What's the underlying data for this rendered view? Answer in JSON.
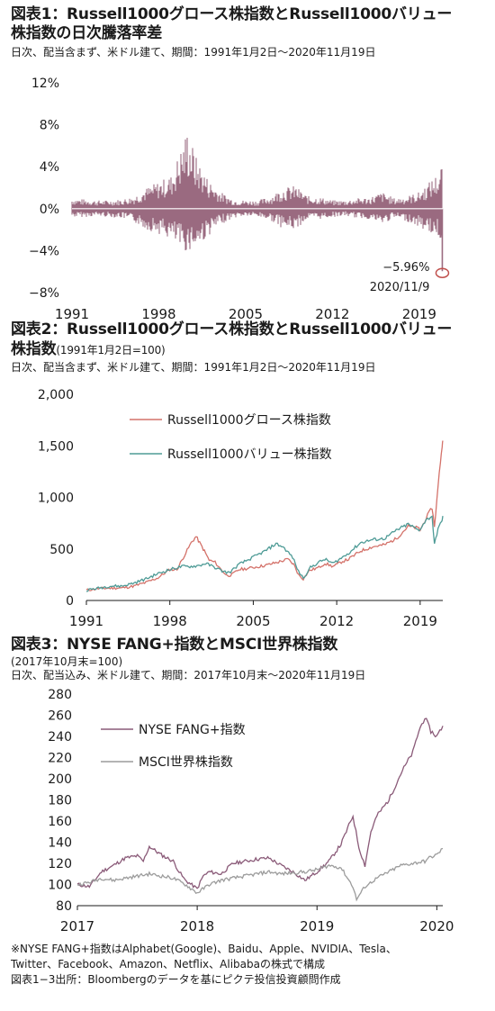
{
  "chart1": {
    "title_line1": "図表1：Russell1000グロース株指数とRussell1000バリュー",
    "title_line2": "株指数の日次騰落率差",
    "subtitle": "日次、配当含まず、米ドル建て、期間：1991年1月2日～2020年11月19日",
    "annotation_value": "−5.96%",
    "annotation_date": "2020/11/9",
    "colors": {
      "bar": "#9b6b80",
      "marker": "#c0504d"
    }
  },
  "chart2": {
    "title_line1": "図表2：Russell1000グロース株指数とRussell1000バリュー",
    "title_line2": "株指数",
    "title_suffix": "(1991年1月2日=100)",
    "subtitle": "日次、配当含まず、米ドル建て、期間：1991年1月2日～2020年11月19日",
    "colors": {
      "growth": "#d4726a",
      "value": "#4e9b96"
    }
  },
  "chart3": {
    "title_line1": "図表3：NYSE FANG+指数とMSCI世界株指数",
    "title_line2": "(2017年10月末=100)",
    "subtitle": "日次、配当込み、米ドル建て、期間：2017年10月末～2020年11月19日",
    "colors": {
      "fang": "#8a5a78",
      "msci": "#9c9c9c"
    }
  },
  "footnote1": "※NYSE FANG+指数はAlphabet(Google)、Baidu、Apple、NVIDIA、Tesla、",
  "footnote2": "Twitter、Facebook、Amazon、Netflix、Alibabaの株式で構成",
  "footnote3": "図表1−3出所：Bloombergのデータを基にピクテ投信投資顧問作成",
  "chart_data": [
    {
      "type": "bar",
      "title": "図表1：Russell1000グロース株指数とRussell1000バリュー株指数の日次騰落率差",
      "xlim": [
        1991,
        2020.9
      ],
      "ylim": [
        -8,
        12
      ],
      "y_ticks": [
        "12%",
        "8%",
        "4%",
        "0%",
        "−4%",
        "−8%"
      ],
      "y_tick_values": [
        12,
        8,
        4,
        0,
        -4,
        -8
      ],
      "x_ticks": [
        "1991",
        "1998",
        "2005",
        "2012",
        "2019"
      ],
      "x_tick_values": [
        1991,
        1998,
        2005,
        2012,
        2019
      ],
      "envelope": [
        {
          "year": 1991.0,
          "up": 1.0,
          "down": -0.8
        },
        {
          "year": 1992.0,
          "up": 0.9,
          "down": -0.8
        },
        {
          "year": 1993.0,
          "up": 0.8,
          "down": -0.7
        },
        {
          "year": 1994.0,
          "up": 0.8,
          "down": -0.8
        },
        {
          "year": 1995.0,
          "up": 0.9,
          "down": -0.9
        },
        {
          "year": 1996.0,
          "up": 1.2,
          "down": -1.3
        },
        {
          "year": 1997.0,
          "up": 2.0,
          "down": -2.0
        },
        {
          "year": 1998.0,
          "up": 2.6,
          "down": -2.4
        },
        {
          "year": 1999.0,
          "up": 3.2,
          "down": -3.0
        },
        {
          "year": 2000.0,
          "up": 6.5,
          "down": -4.2
        },
        {
          "year": 2000.3,
          "up": 7.8,
          "down": -4.0
        },
        {
          "year": 2001.0,
          "up": 5.0,
          "down": -3.8
        },
        {
          "year": 2002.0,
          "up": 2.8,
          "down": -2.6
        },
        {
          "year": 2003.0,
          "up": 1.6,
          "down": -1.5
        },
        {
          "year": 2004.0,
          "up": 0.9,
          "down": -0.9
        },
        {
          "year": 2005.0,
          "up": 0.8,
          "down": -0.7
        },
        {
          "year": 2006.0,
          "up": 0.8,
          "down": -0.8
        },
        {
          "year": 2007.0,
          "up": 1.2,
          "down": -1.1
        },
        {
          "year": 2008.0,
          "up": 2.0,
          "down": -1.9
        },
        {
          "year": 2009.0,
          "up": 2.2,
          "down": -2.0
        },
        {
          "year": 2010.0,
          "up": 1.2,
          "down": -1.0
        },
        {
          "year": 2011.0,
          "up": 1.1,
          "down": -1.0
        },
        {
          "year": 2012.0,
          "up": 0.8,
          "down": -0.8
        },
        {
          "year": 2013.0,
          "up": 0.8,
          "down": -0.7
        },
        {
          "year": 2014.0,
          "up": 1.0,
          "down": -0.9
        },
        {
          "year": 2015.0,
          "up": 1.1,
          "down": -1.0
        },
        {
          "year": 2016.0,
          "up": 1.6,
          "down": -1.5
        },
        {
          "year": 2017.0,
          "up": 1.0,
          "down": -0.9
        },
        {
          "year": 2018.0,
          "up": 1.2,
          "down": -1.2
        },
        {
          "year": 2019.0,
          "up": 1.6,
          "down": -1.8
        },
        {
          "year": 2020.0,
          "up": 2.8,
          "down": -2.4
        },
        {
          "year": 2020.6,
          "up": 3.5,
          "down": -2.8
        },
        {
          "year": 2020.8,
          "up": 4.3,
          "down": -3.0
        }
      ],
      "highlight": {
        "date": "2020/11/9",
        "value": -5.96
      }
    },
    {
      "type": "line",
      "title": "図表2：Russell1000グロース株指数とRussell1000バリュー株指数",
      "xlim": [
        1991,
        2020.9
      ],
      "ylim": [
        0,
        2000
      ],
      "y_ticks": [
        "2,000",
        "1,500",
        "1,000",
        "500",
        "0"
      ],
      "y_tick_values": [
        2000,
        1500,
        1000,
        500,
        0
      ],
      "x_ticks": [
        "1991",
        "1998",
        "2005",
        "2012",
        "2019"
      ],
      "x_tick_values": [
        1991,
        1998,
        2005,
        2012,
        2019
      ],
      "legend_position": "top-center",
      "series": [
        {
          "name": "Russell1000グロース株指数",
          "points": [
            [
              1991.0,
              100
            ],
            [
              1992,
              115
            ],
            [
              1993,
              120
            ],
            [
              1994,
              122
            ],
            [
              1995,
              140
            ],
            [
              1996,
              175
            ],
            [
              1997,
              220
            ],
            [
              1998,
              300
            ],
            [
              1998.6,
              300
            ],
            [
              1999.0,
              390
            ],
            [
              1999.8,
              560
            ],
            [
              2000.2,
              620
            ],
            [
              2000.5,
              560
            ],
            [
              2000.9,
              480
            ],
            [
              2001.3,
              390
            ],
            [
              2001.8,
              370
            ],
            [
              2002.3,
              300
            ],
            [
              2002.8,
              240
            ],
            [
              2003.2,
              250
            ],
            [
              2003.8,
              300
            ],
            [
              2004.5,
              310
            ],
            [
              2005.0,
              320
            ],
            [
              2006.0,
              340
            ],
            [
              2007.0,
              370
            ],
            [
              2007.9,
              400
            ],
            [
              2008.4,
              350
            ],
            [
              2008.8,
              250
            ],
            [
              2009.2,
              210
            ],
            [
              2009.7,
              290
            ],
            [
              2010.5,
              320
            ],
            [
              2011.0,
              360
            ],
            [
              2011.7,
              330
            ],
            [
              2012.5,
              380
            ],
            [
              2013.0,
              400
            ],
            [
              2014.0,
              480
            ],
            [
              2015.0,
              520
            ],
            [
              2016.0,
              540
            ],
            [
              2017.0,
              600
            ],
            [
              2018.0,
              720
            ],
            [
              2018.9,
              700
            ],
            [
              2019.0,
              680
            ],
            [
              2019.5,
              800
            ],
            [
              2020.0,
              900
            ],
            [
              2020.2,
              720
            ],
            [
              2020.5,
              1100
            ],
            [
              2020.7,
              1350
            ],
            [
              2020.85,
              1500
            ],
            [
              2020.9,
              1550
            ]
          ]
        },
        {
          "name": "Russell1000バリュー株指数",
          "points": [
            [
              1991.0,
              100
            ],
            [
              1992,
              120
            ],
            [
              1993,
              140
            ],
            [
              1994,
              140
            ],
            [
              1995,
              170
            ],
            [
              1996,
              210
            ],
            [
              1997,
              260
            ],
            [
              1998,
              300
            ],
            [
              1999.0,
              330
            ],
            [
              1999.8,
              330
            ],
            [
              2000.5,
              340
            ],
            [
              2001.0,
              360
            ],
            [
              2001.8,
              320
            ],
            [
              2002.5,
              280
            ],
            [
              2003.0,
              270
            ],
            [
              2003.8,
              350
            ],
            [
              2004.5,
              390
            ],
            [
              2005.0,
              420
            ],
            [
              2006.0,
              480
            ],
            [
              2006.9,
              550
            ],
            [
              2007.5,
              520
            ],
            [
              2008.3,
              420
            ],
            [
              2008.8,
              280
            ],
            [
              2009.2,
              220
            ],
            [
              2009.8,
              320
            ],
            [
              2010.5,
              370
            ],
            [
              2011.0,
              400
            ],
            [
              2011.7,
              360
            ],
            [
              2012.5,
              420
            ],
            [
              2013.0,
              460
            ],
            [
              2014.0,
              560
            ],
            [
              2015.0,
              590
            ],
            [
              2016.0,
              600
            ],
            [
              2017.0,
              680
            ],
            [
              2018.0,
              740
            ],
            [
              2018.9,
              680
            ],
            [
              2019.5,
              780
            ],
            [
              2020.0,
              820
            ],
            [
              2020.2,
              540
            ],
            [
              2020.5,
              700
            ],
            [
              2020.8,
              760
            ],
            [
              2020.9,
              820
            ]
          ]
        }
      ]
    },
    {
      "type": "line",
      "title": "図表3：NYSE FANG+指数とMSCI世界株指数",
      "xlim": [
        2017.0,
        2020.05
      ],
      "ylim": [
        80,
        280
      ],
      "y_ticks": [
        "280",
        "260",
        "240",
        "220",
        "200",
        "180",
        "160",
        "140",
        "120",
        "100",
        "80"
      ],
      "y_tick_values": [
        280,
        260,
        240,
        220,
        200,
        180,
        160,
        140,
        120,
        100,
        80
      ],
      "x_ticks": [
        "2017",
        "2018",
        "2019",
        "2020"
      ],
      "x_tick_values": [
        2017,
        2018,
        2019,
        2020
      ],
      "legend_position": "top-left",
      "series": [
        {
          "name": "NYSE FANG+指数",
          "points": [
            [
              2017.0,
              100
            ],
            [
              2017.1,
              98
            ],
            [
              2017.2,
              112
            ],
            [
              2017.3,
              118
            ],
            [
              2017.4,
              125
            ],
            [
              2017.5,
              127
            ],
            [
              2017.55,
              122
            ],
            [
              2017.6,
              136
            ],
            [
              2017.7,
              128
            ],
            [
              2017.8,
              122
            ],
            [
              2017.85,
              112
            ],
            [
              2017.9,
              104
            ],
            [
              2018.0,
              96
            ],
            [
              2018.05,
              108
            ],
            [
              2018.1,
              112
            ],
            [
              2018.2,
              110
            ],
            [
              2018.3,
              120
            ],
            [
              2018.4,
              122
            ],
            [
              2018.5,
              124
            ],
            [
              2018.6,
              125
            ],
            [
              2018.7,
              118
            ],
            [
              2018.8,
              112
            ],
            [
              2018.9,
              104
            ],
            [
              2019.0,
              112
            ],
            [
              2019.1,
              122
            ],
            [
              2019.2,
              138
            ],
            [
              2019.3,
              165
            ],
            [
              2019.35,
              135
            ],
            [
              2019.4,
              118
            ],
            [
              2019.45,
              150
            ],
            [
              2019.5,
              165
            ],
            [
              2019.6,
              180
            ],
            [
              2019.7,
              205
            ],
            [
              2019.75,
              215
            ],
            [
              2019.8,
              225
            ],
            [
              2019.85,
              245
            ],
            [
              2019.9,
              258
            ],
            [
              2019.95,
              245
            ],
            [
              2020.0,
              240
            ],
            [
              2020.05,
              250
            ]
          ]
        },
        {
          "name": "MSCI世界株指数",
          "points": [
            [
              2017.0,
              100
            ],
            [
              2017.1,
              102
            ],
            [
              2017.2,
              106
            ],
            [
              2017.3,
              104
            ],
            [
              2017.4,
              106
            ],
            [
              2017.5,
              108
            ],
            [
              2017.6,
              110
            ],
            [
              2017.7,
              108
            ],
            [
              2017.8,
              106
            ],
            [
              2017.9,
              100
            ],
            [
              2018.0,
              92
            ],
            [
              2018.1,
              100
            ],
            [
              2018.2,
              104
            ],
            [
              2018.3,
              106
            ],
            [
              2018.4,
              108
            ],
            [
              2018.5,
              110
            ],
            [
              2018.6,
              112
            ],
            [
              2018.7,
              110
            ],
            [
              2018.8,
              111
            ],
            [
              2018.9,
              112
            ],
            [
              2019.0,
              114
            ],
            [
              2019.1,
              118
            ],
            [
              2019.2,
              116
            ],
            [
              2019.3,
              98
            ],
            [
              2019.33,
              86
            ],
            [
              2019.4,
              98
            ],
            [
              2019.5,
              106
            ],
            [
              2019.6,
              112
            ],
            [
              2019.7,
              118
            ],
            [
              2019.8,
              120
            ],
            [
              2019.9,
              122
            ],
            [
              2019.95,
              126
            ],
            [
              2020.0,
              128
            ],
            [
              2020.05,
              134
            ]
          ]
        }
      ]
    }
  ]
}
